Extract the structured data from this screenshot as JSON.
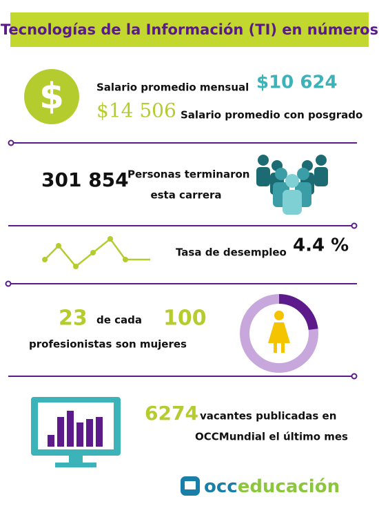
{
  "header": {
    "title": "Tecnologías de la Información (TI) en números"
  },
  "salary": {
    "label": "Salario promedio mensual",
    "amount": "$10 624",
    "postgrad_amount": "$14 506",
    "postgrad_label": "Salario promedio con posgrado"
  },
  "graduates": {
    "amount": "301 854",
    "label_line1": "Personas terminaron",
    "label_line2": "esta carrera"
  },
  "unemployment": {
    "label": "Tasa de desempleo",
    "amount": "4.4 %"
  },
  "women": {
    "count": "23",
    "connector": "de cada",
    "total": "100",
    "label": "profesionistas son mujeres"
  },
  "vacancies": {
    "amount": "6274",
    "label_line1": "vacantes publicadas en",
    "label_line2": "OCCMundial el último mes"
  },
  "footer": {
    "logo_part1": "occ",
    "logo_part2": "educación"
  }
}
